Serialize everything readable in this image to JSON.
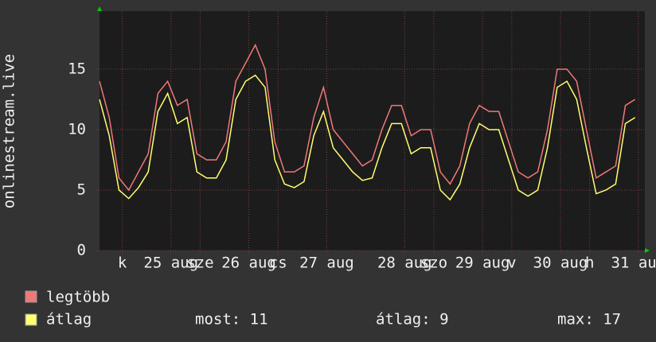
{
  "chart_data": {
    "type": "line",
    "y_label": "onlinestream.live",
    "xlim": [
      0,
      168
    ],
    "x": [
      0,
      3,
      6,
      9,
      12,
      15,
      18,
      21,
      24,
      27,
      30,
      33,
      36,
      39,
      42,
      45,
      48,
      51,
      54,
      57,
      60,
      63,
      66,
      69,
      72,
      75,
      78,
      81,
      84,
      87,
      90,
      93,
      96,
      99,
      102,
      105,
      108,
      111,
      114,
      117,
      120,
      123,
      126,
      129,
      132,
      135,
      138,
      141,
      144,
      147,
      150,
      153,
      156,
      159,
      162,
      165
    ],
    "series": [
      {
        "name": "legtöbb",
        "color": "#f07878",
        "values": [
          14,
          11,
          6,
          5,
          6.5,
          8,
          13,
          14,
          12,
          12.5,
          8,
          7.5,
          7.5,
          9,
          14,
          15.5,
          17,
          15,
          9,
          6.5,
          6.5,
          7,
          11,
          13.5,
          10,
          9,
          8,
          7,
          7.5,
          10,
          12,
          12,
          9.5,
          10,
          10,
          6.5,
          5.5,
          7,
          10.5,
          12,
          11.5,
          11.5,
          9,
          6.5,
          6,
          6.5,
          10,
          15,
          15,
          14,
          10,
          6,
          6.5,
          7,
          12,
          12.5
        ]
      },
      {
        "name": "átlag",
        "color": "#ffff70",
        "values": [
          12.5,
          9.5,
          5,
          4.3,
          5.2,
          6.5,
          11.5,
          13,
          10.5,
          11,
          6.5,
          6,
          6,
          7.5,
          12.5,
          14,
          14.5,
          13.5,
          7.5,
          5.5,
          5.2,
          5.7,
          9.5,
          11.5,
          8.5,
          7.5,
          6.5,
          5.8,
          6,
          8.5,
          10.5,
          10.5,
          8,
          8.5,
          8.5,
          5,
          4.2,
          5.5,
          8.5,
          10.5,
          10,
          10,
          7.5,
          5,
          4.5,
          5,
          8.5,
          13.5,
          14,
          12.5,
          8.5,
          4.7,
          5,
          5.5,
          10.5,
          11
        ]
      }
    ],
    "ylim": [
      0,
      19.8
    ],
    "yticks": [
      0,
      5,
      10,
      15
    ],
    "xticks": [
      {
        "value": 7,
        "label": "k"
      },
      {
        "value": 22,
        "label": "25 aug"
      },
      {
        "value": 31,
        "label": "sze"
      },
      {
        "value": 46,
        "label": "26 aug"
      },
      {
        "value": 55,
        "label": "cs"
      },
      {
        "value": 70,
        "label": "27 aug"
      },
      {
        "value": 94,
        "label": "28 aug"
      },
      {
        "value": 103,
        "label": "szo"
      },
      {
        "value": 118,
        "label": "29 aug"
      },
      {
        "value": 127,
        "label": "v"
      },
      {
        "value": 142,
        "label": "30 aug"
      },
      {
        "value": 151,
        "label": "h"
      },
      {
        "value": 166,
        "label": "31 aug"
      }
    ],
    "stats": [
      "most: 11",
      "átlag: 9",
      "max: 17"
    ],
    "grid": true
  }
}
